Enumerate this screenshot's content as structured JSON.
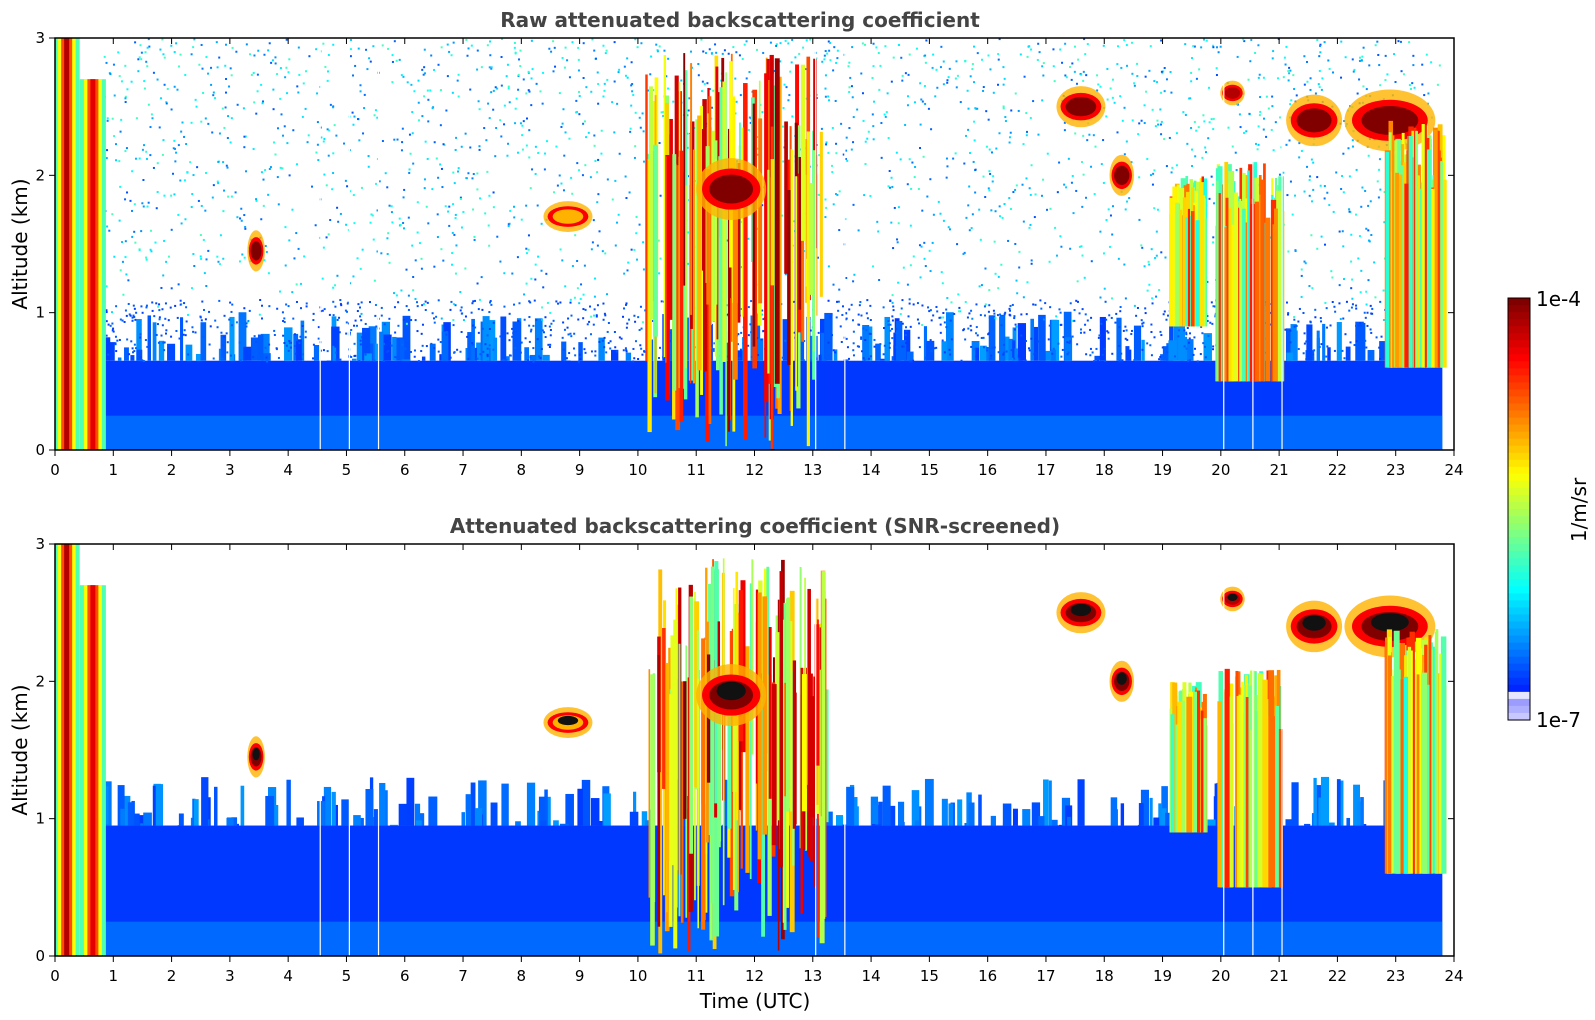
{
  "chart_data": [
    {
      "type": "heatmap",
      "title": "Raw attenuated backscattering coefficient",
      "xlabel": "",
      "ylabel": "Altitude (km)",
      "xlim": [
        0,
        24
      ],
      "ylim": [
        0,
        3
      ],
      "x_ticks": [
        "0",
        "1",
        "2",
        "3",
        "4",
        "5",
        "6",
        "7",
        "8",
        "9",
        "10",
        "11",
        "12",
        "13",
        "14",
        "15",
        "16",
        "17",
        "18",
        "19",
        "20",
        "21",
        "22",
        "23",
        "24"
      ],
      "y_ticks": [
        "0",
        "1",
        "2",
        "3"
      ],
      "colormap": "jet",
      "color_scale": "log",
      "features": [
        {
          "kind": "boundary-layer",
          "x_start": 0.8,
          "x_end": 23.8,
          "top_km": 0.65,
          "intensity": 0.18
        },
        {
          "kind": "noise",
          "x_start": 0.8,
          "x_end": 23.8,
          "bottom_km": 0.9,
          "top_km": 3.0,
          "intensity": 0.2
        },
        {
          "kind": "plume",
          "x": 0.2,
          "bottom_km": 0.0,
          "top_km": 3.0,
          "intensity": 0.95
        },
        {
          "kind": "plume",
          "x": 0.65,
          "bottom_km": 0.0,
          "top_km": 2.7,
          "intensity": 0.9
        },
        {
          "kind": "cloud",
          "x": 3.45,
          "width_h": 0.25,
          "alt_km": 1.45,
          "thickness_km": 0.2,
          "intensity": 1.0
        },
        {
          "kind": "cloud",
          "x": 8.8,
          "width_h": 0.7,
          "alt_km": 1.7,
          "thickness_km": 0.15,
          "intensity": 0.7
        },
        {
          "kind": "cloud-column",
          "x_start": 10.1,
          "x_end": 13.2,
          "bottom_km": 0.0,
          "top_km": 2.9,
          "intensity": 0.95
        },
        {
          "kind": "cloud",
          "x": 11.6,
          "width_h": 1.0,
          "alt_km": 1.9,
          "thickness_km": 0.3,
          "intensity": 1.0
        },
        {
          "kind": "cloud",
          "x": 17.6,
          "width_h": 0.7,
          "alt_km": 2.5,
          "thickness_km": 0.2,
          "intensity": 1.0
        },
        {
          "kind": "cloud",
          "x": 18.3,
          "width_h": 0.35,
          "alt_km": 2.0,
          "thickness_km": 0.2,
          "intensity": 1.0
        },
        {
          "kind": "cloud",
          "x": 20.2,
          "width_h": 0.35,
          "alt_km": 2.6,
          "thickness_km": 0.12,
          "intensity": 0.95
        },
        {
          "kind": "cloud",
          "x": 21.6,
          "width_h": 0.8,
          "alt_km": 2.4,
          "thickness_km": 0.25,
          "intensity": 1.0
        },
        {
          "kind": "cloud",
          "x": 22.9,
          "width_h": 1.3,
          "alt_km": 2.4,
          "thickness_km": 0.3,
          "intensity": 1.0
        },
        {
          "kind": "precipitation",
          "x_start": 19.1,
          "x_end": 19.7,
          "bottom_km": 0.9,
          "top_km": 2.0,
          "intensity": 0.6
        },
        {
          "kind": "precipitation",
          "x_start": 19.9,
          "x_end": 21.0,
          "bottom_km": 0.5,
          "top_km": 2.1,
          "intensity": 0.75
        },
        {
          "kind": "precipitation",
          "x_start": 22.8,
          "x_end": 23.8,
          "bottom_km": 0.6,
          "top_km": 2.4,
          "intensity": 0.7
        }
      ],
      "gaps_x": [
        4.55,
        5.05,
        5.55,
        13.05,
        13.55,
        20.05,
        20.55,
        21.05
      ]
    },
    {
      "type": "heatmap",
      "title": "Attenuated backscattering coefficient (SNR-screened)",
      "xlabel": "Time (UTC)",
      "ylabel": "Altitude (km)",
      "xlim": [
        0,
        24
      ],
      "ylim": [
        0,
        3
      ],
      "x_ticks": [
        "0",
        "1",
        "2",
        "3",
        "4",
        "5",
        "6",
        "7",
        "8",
        "9",
        "10",
        "11",
        "12",
        "13",
        "14",
        "15",
        "16",
        "17",
        "18",
        "19",
        "20",
        "21",
        "22",
        "23",
        "24"
      ],
      "y_ticks": [
        "0",
        "1",
        "2",
        "3"
      ],
      "colormap": "jet",
      "color_scale": "log",
      "screened": true,
      "features": [
        {
          "kind": "boundary-layer",
          "x_start": 0.8,
          "x_end": 23.8,
          "top_km": 0.95,
          "intensity": 0.18
        },
        {
          "kind": "plume",
          "x": 0.2,
          "bottom_km": 0.0,
          "top_km": 3.0,
          "intensity": 0.95
        },
        {
          "kind": "plume",
          "x": 0.65,
          "bottom_km": 0.0,
          "top_km": 2.7,
          "intensity": 0.9
        },
        {
          "kind": "cloud",
          "x": 3.45,
          "width_h": 0.25,
          "alt_km": 1.45,
          "thickness_km": 0.2,
          "intensity": 1.0
        },
        {
          "kind": "cloud",
          "x": 8.8,
          "width_h": 0.7,
          "alt_km": 1.7,
          "thickness_km": 0.15,
          "intensity": 0.7
        },
        {
          "kind": "cloud-column",
          "x_start": 10.1,
          "x_end": 13.2,
          "bottom_km": 0.0,
          "top_km": 2.9,
          "intensity": 0.95
        },
        {
          "kind": "cloud",
          "x": 11.6,
          "width_h": 1.0,
          "alt_km": 1.9,
          "thickness_km": 0.3,
          "intensity": 1.0
        },
        {
          "kind": "cloud",
          "x": 17.6,
          "width_h": 0.7,
          "alt_km": 2.5,
          "thickness_km": 0.2,
          "intensity": 1.0
        },
        {
          "kind": "cloud",
          "x": 18.3,
          "width_h": 0.35,
          "alt_km": 2.0,
          "thickness_km": 0.2,
          "intensity": 1.0
        },
        {
          "kind": "cloud",
          "x": 20.2,
          "width_h": 0.35,
          "alt_km": 2.6,
          "thickness_km": 0.12,
          "intensity": 0.95
        },
        {
          "kind": "cloud",
          "x": 21.6,
          "width_h": 0.8,
          "alt_km": 2.4,
          "thickness_km": 0.25,
          "intensity": 1.0
        },
        {
          "kind": "cloud",
          "x": 22.9,
          "width_h": 1.3,
          "alt_km": 2.4,
          "thickness_km": 0.3,
          "intensity": 1.0
        },
        {
          "kind": "precipitation",
          "x_start": 19.1,
          "x_end": 19.7,
          "bottom_km": 0.9,
          "top_km": 2.0,
          "intensity": 0.6
        },
        {
          "kind": "precipitation",
          "x_start": 19.9,
          "x_end": 21.0,
          "bottom_km": 0.5,
          "top_km": 2.1,
          "intensity": 0.75
        },
        {
          "kind": "precipitation",
          "x_start": 22.8,
          "x_end": 23.8,
          "bottom_km": 0.6,
          "top_km": 2.4,
          "intensity": 0.7
        }
      ],
      "gaps_x": [
        4.55,
        5.05,
        5.55,
        13.05,
        13.55,
        20.05,
        20.55,
        21.05
      ]
    }
  ],
  "colorbar": {
    "label": "1/m/sr",
    "max_label": "1e-4",
    "min_label": "1e-7",
    "min_value": 1e-07,
    "max_value": 0.0001,
    "scale": "log",
    "colormap": "jet"
  }
}
